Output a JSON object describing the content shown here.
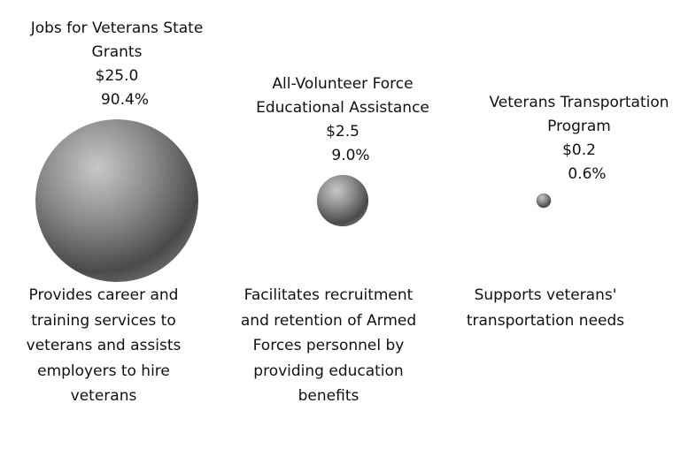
{
  "chart_data": {
    "type": "bubble",
    "categories": [
      "Jobs for Veterans State Grants",
      "All-Volunteer Force Educational Assistance",
      "Veterans Transportation Program"
    ],
    "values": [
      25.0,
      2.5,
      0.2
    ],
    "value_labels": [
      "$25.0",
      "$2.5",
      "$0.2"
    ],
    "shares": [
      90.4,
      9.0,
      0.6
    ],
    "share_labels": [
      "90.4%",
      "9.0%",
      "0.6%"
    ],
    "descriptions": [
      "Provides career and training services to veterans and assists employers to hire veterans",
      "Facilitates recruitment and retention of Armed Forces personnel by providing education benefits",
      "Supports veterans' transportation needs"
    ]
  }
}
